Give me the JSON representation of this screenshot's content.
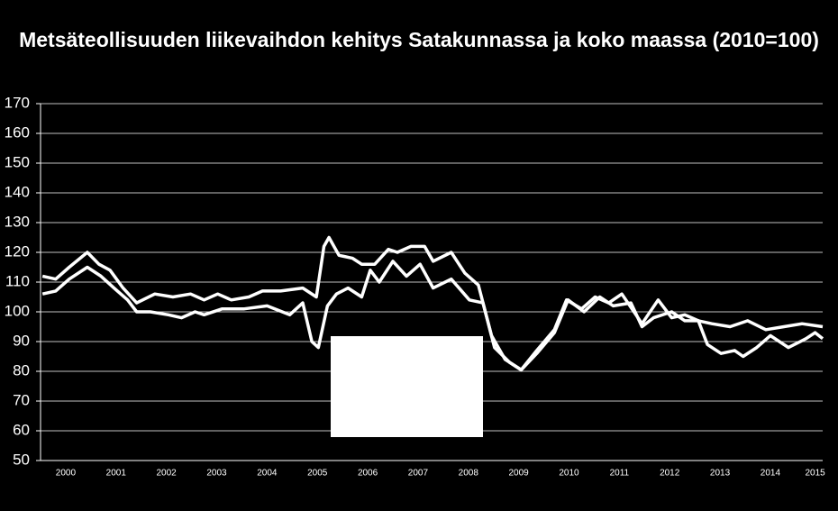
{
  "chart_data": {
    "type": "line",
    "title": "Metsäteollisuuden liikevaihdon kehitys Satakunnassa ja koko maassa (2010=100)",
    "xlim": [
      2000,
      2015.54
    ],
    "xticks": [
      {
        "value": 2000.5,
        "label": "2000"
      },
      {
        "value": 2001.5,
        "label": "2001"
      },
      {
        "value": 2002.5,
        "label": "2002"
      },
      {
        "value": 2003.5,
        "label": "2003"
      },
      {
        "value": 2004.5,
        "label": "2004"
      },
      {
        "value": 2005.5,
        "label": "2005"
      },
      {
        "value": 2006.5,
        "label": "2006"
      },
      {
        "value": 2007.5,
        "label": "2007"
      },
      {
        "value": 2008.5,
        "label": "2008"
      },
      {
        "value": 2009.5,
        "label": "2009"
      },
      {
        "value": 2010.5,
        "label": "2010"
      },
      {
        "value": 2011.5,
        "label": "2011"
      },
      {
        "value": 2012.5,
        "label": "2012"
      },
      {
        "value": 2013.5,
        "label": "2013"
      },
      {
        "value": 2014.5,
        "label": "2014"
      },
      {
        "value": 2015.39,
        "label": "2015"
      }
    ],
    "ylim": [
      50,
      170
    ],
    "yticks": [
      50,
      60,
      70,
      80,
      90,
      100,
      110,
      120,
      130,
      140,
      150,
      160,
      170
    ],
    "grid": true,
    "series": [
      {
        "color": "#ffffff",
        "x": [
          2000.04,
          2000.3,
          2000.57,
          2000.93,
          2001.16,
          2001.38,
          2001.64,
          2001.91,
          2002.27,
          2002.63,
          2002.98,
          2003.25,
          2003.52,
          2003.79,
          2004.14,
          2004.41,
          2004.77,
          2005.21,
          2005.48,
          2005.63,
          2005.73,
          2005.93,
          2006.2,
          2006.38,
          2006.64,
          2006.91,
          2007.09,
          2007.36,
          2007.63,
          2007.8,
          2008.16,
          2008.43,
          2008.7,
          2008.96,
          2009.23,
          2009.55,
          2009.86,
          2010.21,
          2010.45,
          2010.75,
          2011.02,
          2011.29,
          2011.55,
          2011.95,
          2012.27,
          2012.54,
          2012.8,
          2013.07,
          2013.34,
          2013.7,
          2014.05,
          2014.41,
          2014.77,
          2015.13,
          2015.54
        ],
        "values": [
          112,
          111,
          115,
          120,
          116,
          114,
          108,
          103,
          106,
          105,
          106,
          104,
          106,
          104,
          105,
          107,
          107,
          108,
          105,
          122,
          125,
          119,
          118,
          116,
          116,
          121,
          120,
          122,
          122,
          117,
          120,
          113,
          109,
          92,
          84,
          80.5,
          87,
          94,
          104,
          101,
          105,
          103,
          106,
          96,
          104,
          98,
          99,
          97,
          96,
          95,
          97,
          94,
          95,
          96,
          95
        ]
      },
      {
        "color": "#ffffff",
        "x": [
          2000.04,
          2000.3,
          2000.57,
          2000.93,
          2001.2,
          2001.46,
          2001.73,
          2001.91,
          2002.18,
          2002.54,
          2002.8,
          2003.07,
          2003.25,
          2003.61,
          2004.05,
          2004.5,
          2004.95,
          2005.21,
          2005.39,
          2005.52,
          2005.7,
          2005.88,
          2006.11,
          2006.38,
          2006.55,
          2006.73,
          2007.0,
          2007.27,
          2007.54,
          2007.8,
          2008.16,
          2008.52,
          2008.79,
          2009.02,
          2009.32,
          2009.55,
          2009.86,
          2010.21,
          2010.48,
          2010.8,
          2011.11,
          2011.38,
          2011.73,
          2011.95,
          2012.18,
          2012.54,
          2012.8,
          2013.07,
          2013.25,
          2013.52,
          2013.79,
          2013.96,
          2014.23,
          2014.5,
          2014.86,
          2015.21,
          2015.39,
          2015.54
        ],
        "values": [
          106,
          107,
          111,
          115,
          112,
          108,
          104,
          100,
          100,
          99,
          98,
          100,
          99,
          101,
          101,
          102,
          99,
          103,
          90,
          88,
          102,
          106,
          108,
          105,
          114,
          110,
          117,
          112,
          116,
          108,
          111,
          104,
          103,
          88,
          83,
          80.5,
          86,
          93,
          104,
          100,
          105,
          102,
          103,
          95,
          98,
          100,
          97,
          97,
          89,
          86,
          87,
          85,
          88,
          92,
          88,
          91,
          93,
          91
        ]
      }
    ]
  }
}
